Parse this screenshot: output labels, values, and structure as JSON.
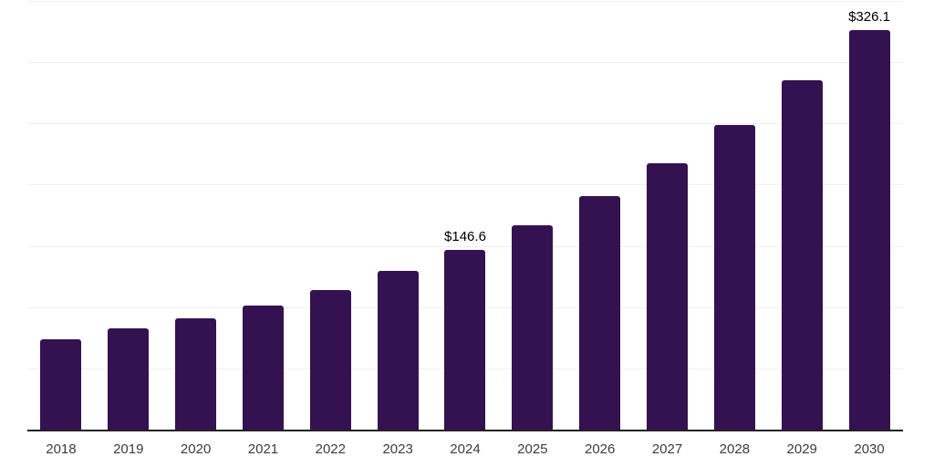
{
  "chart_data": {
    "type": "bar",
    "title": "",
    "xlabel": "",
    "ylabel": "",
    "categories": [
      "2018",
      "2019",
      "2020",
      "2021",
      "2022",
      "2023",
      "2024",
      "2025",
      "2026",
      "2027",
      "2028",
      "2029",
      "2030"
    ],
    "values": [
      74.0,
      82.7,
      90.6,
      101.0,
      113.8,
      129.8,
      146.6,
      167.0,
      190.3,
      217.1,
      248.4,
      284.9,
      326.1
    ],
    "data_labels": {
      "2024": "$146.6",
      "2030": "$326.1"
    },
    "ylim": [
      0,
      350
    ],
    "gridline_step": 50,
    "grid": true,
    "legend": false,
    "y_tick_labels_visible": false,
    "bar_color": "#341150",
    "axis_color": "#222222",
    "gridline_color": "#efefef",
    "data_label_color": "#000000",
    "tick_label_color": "#3d3d3d"
  }
}
